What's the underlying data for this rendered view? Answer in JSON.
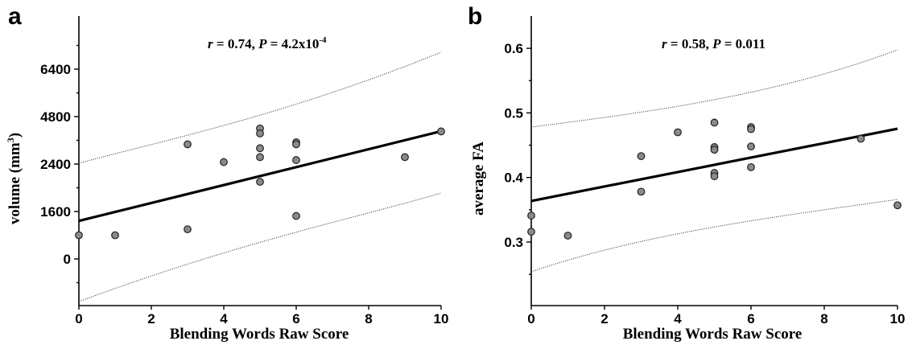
{
  "chart_data": [
    {
      "panel": "a",
      "type": "scatter",
      "stats": {
        "r": "0.74",
        "p": "4.2x10",
        "p_exp": "-4"
      },
      "xlabel": "Blending Words Raw Score",
      "ylabel": "volume (mm",
      "ylabel_sup": "3",
      "ylabel_end": ")",
      "xlim": [
        0,
        10
      ],
      "xticks": [
        "0",
        "2",
        "4",
        "6",
        "8",
        "10"
      ],
      "yticks": [
        "0",
        "1600",
        "2400",
        "4800",
        "6400"
      ],
      "points": [
        {
          "x": 0,
          "y": 800
        },
        {
          "x": 1,
          "y": 800
        },
        {
          "x": 3,
          "y": 1000
        },
        {
          "x": 3,
          "y": 3400
        },
        {
          "x": 4,
          "y": 2500
        },
        {
          "x": 5,
          "y": 4200
        },
        {
          "x": 5,
          "y": 3950
        },
        {
          "x": 5,
          "y": 3200
        },
        {
          "x": 5,
          "y": 2750
        },
        {
          "x": 5,
          "y": 2100
        },
        {
          "x": 6,
          "y": 3500
        },
        {
          "x": 6,
          "y": 3400
        },
        {
          "x": 6,
          "y": 2600
        },
        {
          "x": 6,
          "y": 1450
        },
        {
          "x": 9,
          "y": 2750
        },
        {
          "x": 10,
          "y": 4050
        }
      ]
    },
    {
      "panel": "b",
      "type": "scatter",
      "stats": {
        "r": "0.58",
        "p": "0.011"
      },
      "xlabel": "Blending Words Raw Score",
      "ylabel": "average FA",
      "xlim": [
        0,
        10
      ],
      "ylim": [
        0.2,
        0.65
      ],
      "xticks": [
        "0",
        "2",
        "4",
        "6",
        "8",
        "10"
      ],
      "yticks": [
        "0.3",
        "0.4",
        "0.5",
        "0.6"
      ],
      "points": [
        {
          "x": 0,
          "y": 0.341
        },
        {
          "x": 0,
          "y": 0.316
        },
        {
          "x": 1,
          "y": 0.31
        },
        {
          "x": 3,
          "y": 0.433
        },
        {
          "x": 3,
          "y": 0.378
        },
        {
          "x": 4,
          "y": 0.47
        },
        {
          "x": 5,
          "y": 0.485
        },
        {
          "x": 5,
          "y": 0.447
        },
        {
          "x": 5,
          "y": 0.443
        },
        {
          "x": 5,
          "y": 0.407
        },
        {
          "x": 5,
          "y": 0.402
        },
        {
          "x": 6,
          "y": 0.478
        },
        {
          "x": 6,
          "y": 0.475
        },
        {
          "x": 6,
          "y": 0.448
        },
        {
          "x": 6,
          "y": 0.416
        },
        {
          "x": 9,
          "y": 0.46
        },
        {
          "x": 10,
          "y": 0.357
        }
      ]
    }
  ]
}
